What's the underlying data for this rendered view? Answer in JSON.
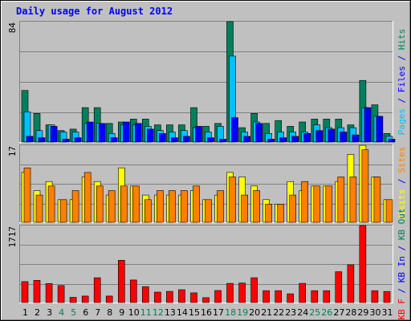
{
  "chart_data": {
    "type": "bar",
    "title": "Daily usage for August 2012",
    "colors": {
      "background": "#c0c0c0",
      "frame_top": "#ffffff",
      "frame_bottom": "#808080",
      "title": "#0000ff",
      "hits": "#00805c",
      "files": "#00c0ff",
      "pages": "#0000ff",
      "visits": "#ffff00",
      "sites": "#ff8000",
      "kb_in": "#0000ff",
      "kb_out": "#00805c",
      "kbf": "#ff0000",
      "weekend_label": "#00805c",
      "weekday_label": "#000000"
    },
    "categories": [
      "1",
      "2",
      "3",
      "4",
      "5",
      "6",
      "7",
      "8",
      "9",
      "10",
      "11",
      "12",
      "13",
      "14",
      "15",
      "16",
      "17",
      "18",
      "19",
      "20",
      "21",
      "22",
      "23",
      "24",
      "25",
      "26",
      "27",
      "28",
      "29",
      "30",
      "31"
    ],
    "weekend_days": [
      "4",
      "5",
      "11",
      "12",
      "18",
      "19",
      "25",
      "26"
    ],
    "panels": [
      {
        "id": "pages-files-hits",
        "ymax_label": "84",
        "ymax": 84,
        "right_labels": [
          {
            "text": "Pages",
            "color": "#00c0ff"
          },
          {
            "text": " / ",
            "color": "#0000ff"
          },
          {
            "text": "Files",
            "color": "#0000ff"
          },
          {
            "text": " / ",
            "color": "#0000ff"
          },
          {
            "text": "Hits",
            "color": "#00805c"
          }
        ],
        "series": [
          {
            "name": "Hits",
            "color": "#00805c",
            "values": [
              36,
              20,
              12,
              8,
              9,
              24,
              24,
              13,
              14,
              16,
              16,
              12,
              12,
              12,
              24,
              11,
              13,
              84,
              10,
              20,
              13,
              15,
              11,
              14,
              16,
              16,
              16,
              12,
              43,
              26,
              6
            ]
          },
          {
            "name": "Files",
            "color": "#00c0ff",
            "values": [
              21,
              8,
              12,
              7,
              7,
              13,
              13,
              6,
              12,
              12,
              11,
              8,
              7,
              8,
              10,
              7,
              11,
              60,
              7,
              14,
              6,
              7,
              7,
              7,
              12,
              10,
              10,
              10,
              24,
              18,
              4
            ]
          },
          {
            "name": "Pages",
            "color": "#0000ff",
            "values": [
              4,
              3,
              11,
              2,
              3,
              14,
              13,
              3,
              14,
              13,
              9,
              6,
              3,
              4,
              11,
              3,
              2,
              17,
              4,
              13,
              2,
              3,
              4,
              6,
              8,
              9,
              7,
              5,
              24,
              18,
              2
            ]
          }
        ]
      },
      {
        "id": "visits-sites",
        "ymax_label": "17",
        "ymax": 17,
        "right_labels": [
          {
            "text": "Visits",
            "color": "#ffff00"
          },
          {
            "text": " / ",
            "color": "#0000ff"
          },
          {
            "text": "Sites",
            "color": "#ff8000"
          }
        ],
        "series": [
          {
            "name": "Visits",
            "color": "#ffff00",
            "values": [
              11,
              7,
              9,
              5,
              5,
              10,
              9,
              6,
              12,
              8,
              6,
              6,
              6,
              6,
              7,
              5,
              6,
              11,
              10,
              8,
              5,
              4,
              9,
              7,
              8,
              8,
              9,
              15,
              17,
              10,
              5
            ]
          },
          {
            "name": "Sites",
            "color": "#ff8000",
            "values": [
              12,
              6,
              8,
              5,
              7,
              11,
              8,
              7,
              8,
              8,
              5,
              7,
              7,
              7,
              8,
              5,
              7,
              10,
              6,
              7,
              4,
              4,
              6,
              9,
              8,
              8,
              10,
              10,
              16,
              10,
              5
            ]
          }
        ]
      },
      {
        "id": "kb",
        "ymax_label": "1717",
        "ymax": 1717,
        "right_labels": [
          {
            "text": "KB F",
            "color": "#ff0000"
          },
          {
            "text": " / ",
            "color": "#0000ff"
          },
          {
            "text": "KB In",
            "color": "#0000ff"
          },
          {
            "text": " / ",
            "color": "#0000ff"
          },
          {
            "text": "KB Out",
            "color": "#00805c"
          }
        ],
        "series": [
          {
            "name": "KB F",
            "color": "#ff0000",
            "values": [
              466,
              496,
              424,
              380,
              117,
              144,
              552,
              144,
              942,
              502,
              354,
              233,
              248,
              286,
              217,
              109,
              268,
              427,
              434,
              552,
              265,
              265,
              195,
              427,
              265,
              265,
              686,
              840,
              1717,
              265,
              247
            ]
          }
        ]
      }
    ]
  }
}
